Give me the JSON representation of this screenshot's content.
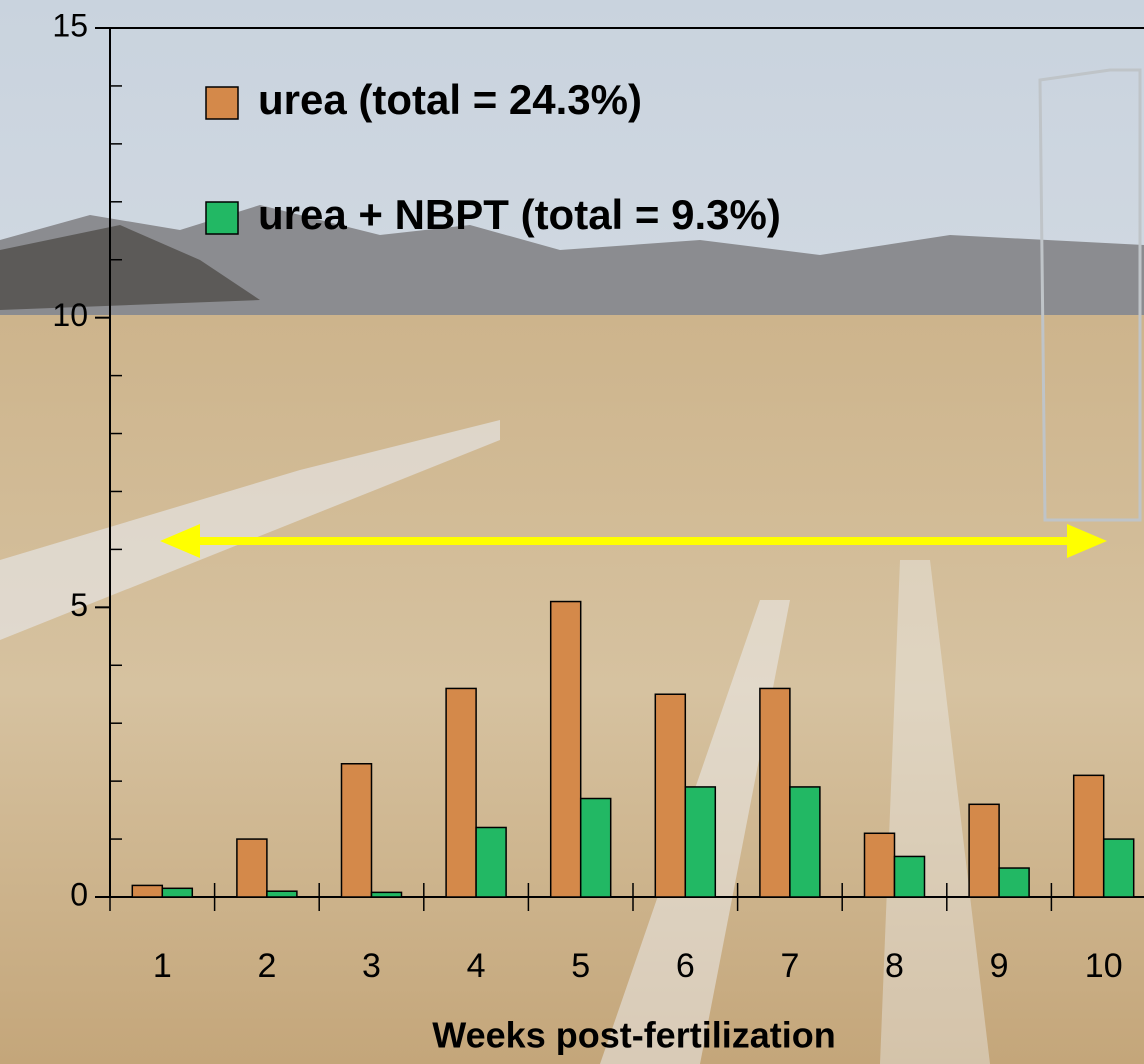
{
  "chart_data": {
    "type": "bar",
    "x_label": "Weeks post-fertilization",
    "categories": [
      "1",
      "2",
      "3",
      "4",
      "5",
      "6",
      "7",
      "8",
      "9",
      "10"
    ],
    "series": [
      {
        "name": "urea (total = 24.3%)",
        "color": "#d4894a",
        "values": [
          0.2,
          1.0,
          2.3,
          3.6,
          5.1,
          3.5,
          3.6,
          1.1,
          1.6,
          2.1
        ]
      },
      {
        "name": "urea + NBPT (total = 9.3%)",
        "color": "#22b864",
        "values": [
          0.15,
          0.1,
          0.08,
          1.2,
          1.7,
          1.9,
          1.9,
          0.7,
          0.5,
          1.0
        ]
      }
    ],
    "ylim": [
      0,
      15
    ],
    "yticks": [
      0,
      5,
      10,
      15
    ],
    "minor_yticks": [
      1,
      2,
      3,
      4,
      6,
      7,
      8,
      9,
      11,
      12,
      13,
      14
    ],
    "legend": "upper-left"
  }
}
